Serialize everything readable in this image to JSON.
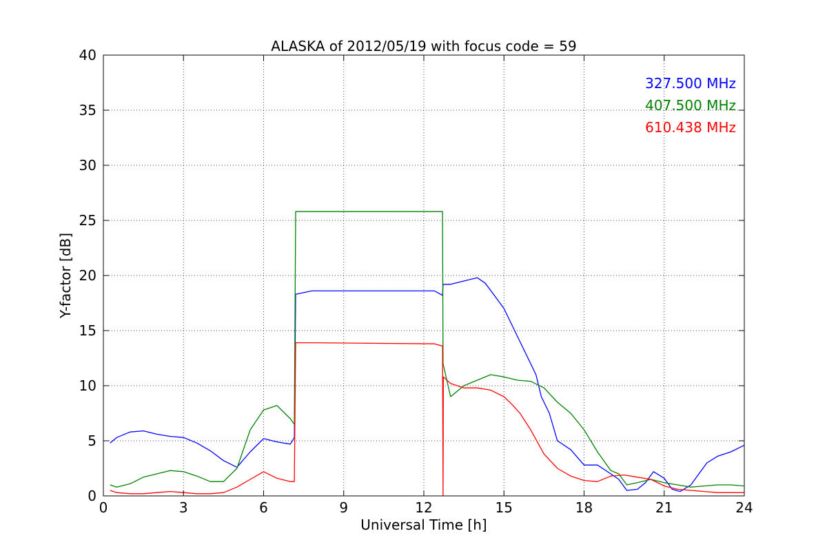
{
  "chart_data": {
    "type": "line",
    "title": "ALASKA of 2012/05/19 with focus code = 59",
    "xlabel": "Universal Time [h]",
    "ylabel": "Y-factor [dB]",
    "xlim": [
      0,
      24
    ],
    "ylim": [
      0,
      40
    ],
    "xticks": [
      "0",
      "3",
      "6",
      "9",
      "12",
      "15",
      "18",
      "21",
      "24"
    ],
    "yticks": [
      "0",
      "5",
      "10",
      "15",
      "20",
      "25",
      "30",
      "35",
      "40"
    ],
    "grid": true,
    "legend_position": "top-right",
    "series": [
      {
        "name": "327.500 MHz",
        "color": "#0000ff",
        "x": [
          0.25,
          0.5,
          1.0,
          1.5,
          2.0,
          2.5,
          3.0,
          3.5,
          4.0,
          4.5,
          5.0,
          5.5,
          6.0,
          6.5,
          7.0,
          7.15,
          7.2,
          7.8,
          12.4,
          12.7,
          12.72,
          13.0,
          13.5,
          14.0,
          14.3,
          14.7,
          15.0,
          15.3,
          15.6,
          16.0,
          16.2,
          16.4,
          16.7,
          17.0,
          17.5,
          18.0,
          18.5,
          19.0,
          19.3,
          19.6,
          20.0,
          20.3,
          20.6,
          21.0,
          21.3,
          21.6,
          22.0,
          22.3,
          22.6,
          23.0,
          23.5,
          24.0
        ],
        "y": [
          4.8,
          5.3,
          5.8,
          5.9,
          5.6,
          5.4,
          5.3,
          4.8,
          4.1,
          3.2,
          2.6,
          4.0,
          5.2,
          4.9,
          4.7,
          5.3,
          18.3,
          18.6,
          18.6,
          18.2,
          19.2,
          19.2,
          19.5,
          19.8,
          19.3,
          18.0,
          17.0,
          15.5,
          14.0,
          12.0,
          11.0,
          9.0,
          7.5,
          5.0,
          4.2,
          2.8,
          2.8,
          2.0,
          1.5,
          0.5,
          0.6,
          1.2,
          2.2,
          1.6,
          0.6,
          0.4,
          1.0,
          2.0,
          3.0,
          3.6,
          4.0,
          4.6
        ]
      },
      {
        "name": "407.500 MHz",
        "color": "#008000",
        "x": [
          0.25,
          0.5,
          1.0,
          1.5,
          2.0,
          2.5,
          3.0,
          3.5,
          4.0,
          4.5,
          5.0,
          5.5,
          6.0,
          6.5,
          7.0,
          7.15,
          7.2,
          7.8,
          12.4,
          12.7,
          12.72,
          13.0,
          13.5,
          14.0,
          14.5,
          15.0,
          15.5,
          16.0,
          16.5,
          17.0,
          17.5,
          18.0,
          18.5,
          19.0,
          19.3,
          19.6,
          20.0,
          20.5,
          21.0,
          21.5,
          22.0,
          22.5,
          23.0,
          23.5,
          24.0
        ],
        "y": [
          1.0,
          0.8,
          1.1,
          1.7,
          2.0,
          2.3,
          2.2,
          1.8,
          1.3,
          1.3,
          2.5,
          6.0,
          7.8,
          8.2,
          7.0,
          6.5,
          25.8,
          25.8,
          25.8,
          25.8,
          12.0,
          9.0,
          10.0,
          10.5,
          11.0,
          10.8,
          10.5,
          10.4,
          9.8,
          8.5,
          7.5,
          6.0,
          4.0,
          2.3,
          2.0,
          1.0,
          1.2,
          1.5,
          1.2,
          1.0,
          0.8,
          0.9,
          1.0,
          1.0,
          0.9
        ]
      },
      {
        "name": "610.438 MHz",
        "color": "#ff0000",
        "x": [
          0.25,
          0.5,
          1.0,
          1.5,
          2.0,
          2.5,
          3.0,
          3.5,
          4.0,
          4.5,
          5.0,
          5.5,
          6.0,
          6.5,
          7.0,
          7.15,
          7.2,
          7.8,
          12.4,
          12.7,
          12.72,
          12.73,
          13.0,
          13.5,
          14.0,
          14.5,
          15.0,
          15.3,
          15.6,
          16.0,
          16.5,
          17.0,
          17.5,
          18.0,
          18.5,
          19.0,
          19.5,
          20.0,
          20.5,
          21.0,
          21.5,
          22.0,
          22.5,
          23.0,
          23.5,
          24.0
        ],
        "y": [
          0.5,
          0.3,
          0.2,
          0.2,
          0.3,
          0.4,
          0.3,
          0.2,
          0.2,
          0.3,
          0.8,
          1.5,
          2.2,
          1.6,
          1.3,
          1.3,
          13.9,
          13.9,
          13.8,
          13.6,
          0.0,
          10.8,
          10.2,
          9.8,
          9.8,
          9.6,
          9.0,
          8.3,
          7.5,
          6.0,
          3.8,
          2.5,
          1.8,
          1.4,
          1.3,
          1.8,
          1.9,
          1.7,
          1.5,
          0.9,
          0.6,
          0.5,
          0.4,
          0.3,
          0.3,
          0.3
        ]
      }
    ]
  }
}
